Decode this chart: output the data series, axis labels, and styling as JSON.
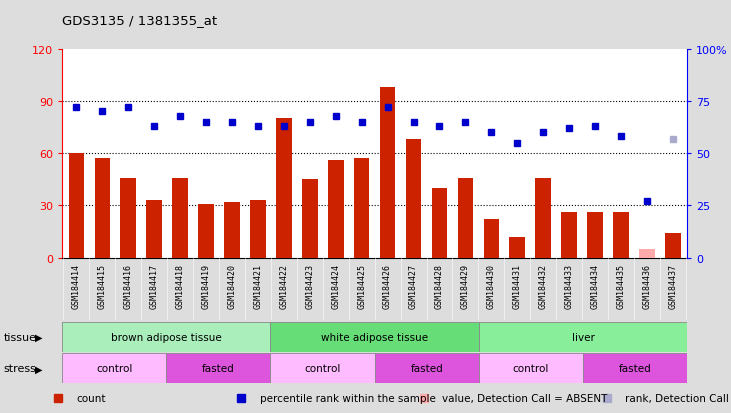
{
  "title": "GDS3135 / 1381355_at",
  "samples": [
    "GSM184414",
    "GSM184415",
    "GSM184416",
    "GSM184417",
    "GSM184418",
    "GSM184419",
    "GSM184420",
    "GSM184421",
    "GSM184422",
    "GSM184423",
    "GSM184424",
    "GSM184425",
    "GSM184426",
    "GSM184427",
    "GSM184428",
    "GSM184429",
    "GSM184430",
    "GSM184431",
    "GSM184432",
    "GSM184433",
    "GSM184434",
    "GSM184435",
    "GSM184436",
    "GSM184437"
  ],
  "counts": [
    60,
    57,
    46,
    33,
    46,
    31,
    32,
    33,
    80,
    45,
    56,
    57,
    98,
    68,
    40,
    46,
    22,
    12,
    46,
    26,
    26,
    26,
    5,
    14
  ],
  "percentile_ranks": [
    72,
    70,
    72,
    63,
    68,
    65,
    65,
    63,
    63,
    65,
    68,
    65,
    72,
    65,
    63,
    65,
    60,
    55,
    60,
    62,
    63,
    58,
    27,
    57
  ],
  "absent_mask_count": [
    false,
    false,
    false,
    false,
    false,
    false,
    false,
    false,
    false,
    false,
    false,
    false,
    false,
    false,
    false,
    false,
    false,
    false,
    false,
    false,
    false,
    false,
    true,
    false
  ],
  "absent_mask_rank": [
    false,
    false,
    false,
    false,
    false,
    false,
    false,
    false,
    false,
    false,
    false,
    false,
    false,
    false,
    false,
    false,
    false,
    false,
    false,
    false,
    false,
    false,
    false,
    true
  ],
  "bar_color": "#cc2200",
  "dot_color": "#0000cc",
  "absent_bar_color": "#ffaaaa",
  "absent_dot_color": "#aaaacc",
  "ylim_left": [
    0,
    120
  ],
  "ylim_right": [
    0,
    100
  ],
  "yticks_left": [
    0,
    30,
    60,
    90,
    120
  ],
  "yticks_right": [
    0,
    25,
    50,
    75,
    100
  ],
  "ytick_labels_left": [
    "0",
    "30",
    "60",
    "90",
    "120"
  ],
  "ytick_labels_right": [
    "0",
    "25",
    "50",
    "75",
    "100%"
  ],
  "tissue_groups": [
    {
      "label": "brown adipose tissue",
      "start": 0,
      "end": 8,
      "color": "#aaeebb"
    },
    {
      "label": "white adipose tissue",
      "start": 8,
      "end": 16,
      "color": "#66dd77"
    },
    {
      "label": "liver",
      "start": 16,
      "end": 24,
      "color": "#88ee99"
    }
  ],
  "stress_groups": [
    {
      "label": "control",
      "start": 0,
      "end": 4,
      "color": "#ffbbff"
    },
    {
      "label": "fasted",
      "start": 4,
      "end": 8,
      "color": "#dd55dd"
    },
    {
      "label": "control",
      "start": 8,
      "end": 12,
      "color": "#ffbbff"
    },
    {
      "label": "fasted",
      "start": 12,
      "end": 16,
      "color": "#dd55dd"
    },
    {
      "label": "control",
      "start": 16,
      "end": 20,
      "color": "#ffbbff"
    },
    {
      "label": "fasted",
      "start": 20,
      "end": 24,
      "color": "#dd55dd"
    }
  ],
  "legend_items": [
    {
      "label": "count",
      "color": "#cc2200",
      "marker": "s"
    },
    {
      "label": "percentile rank within the sample",
      "color": "#0000cc",
      "marker": "s"
    },
    {
      "label": "value, Detection Call = ABSENT",
      "color": "#ffaaaa",
      "marker": "s"
    },
    {
      "label": "rank, Detection Call = ABSENT",
      "color": "#aaaacc",
      "marker": "s"
    }
  ],
  "bg_color": "#dddddd",
  "plot_bg_color": "#ffffff",
  "tick_area_color": "#cccccc",
  "tissue_row_label": "tissue",
  "stress_row_label": "stress",
  "grid_yticks": [
    30,
    60,
    90
  ]
}
